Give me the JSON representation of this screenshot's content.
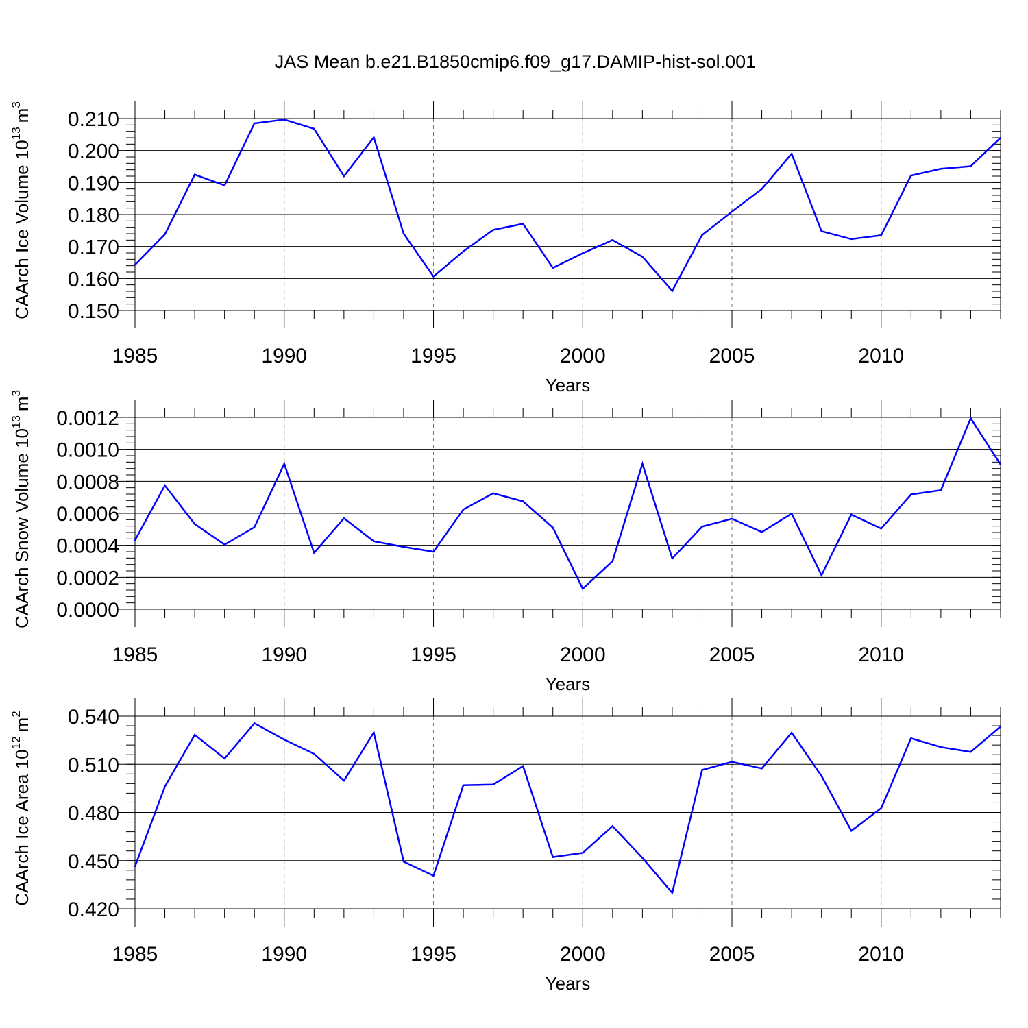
{
  "title": "JAS Mean b.e21.B1850cmip6.f09_g17.DAMIP-hist-sol.001",
  "colors": {
    "series": "#0000ff",
    "axes": "#000000",
    "grid": "#777777"
  },
  "chart_data": [
    {
      "type": "line",
      "ylabel_main": "CAArch Ice Volume 10",
      "ylabel_exp": "13",
      "ylabel_unit": "m",
      "ylabel_unit_exp": "3",
      "xlabel": "Years",
      "xlim": [
        1985,
        2014
      ],
      "ylim": [
        0.15,
        0.21
      ],
      "x_ticks": [
        "1985",
        "1990",
        "1995",
        "2000",
        "2005",
        "2010"
      ],
      "y_ticks": [
        "0.150",
        "0.160",
        "0.170",
        "0.180",
        "0.190",
        "0.200",
        "0.210"
      ],
      "y_tick_values": [
        0.15,
        0.16,
        0.17,
        0.18,
        0.19,
        0.2,
        0.21
      ],
      "y_minor_step": 0.002,
      "x": [
        1985,
        1986,
        1987,
        1988,
        1989,
        1990,
        1991,
        1992,
        1993,
        1994,
        1995,
        1996,
        1997,
        1998,
        1999,
        2000,
        2001,
        2002,
        2003,
        2004,
        2005,
        2006,
        2007,
        2008,
        2009,
        2010,
        2011,
        2012,
        2013,
        2014
      ],
      "series": [
        {
          "name": "Ice Volume",
          "values": [
            0.1643,
            0.1738,
            0.1925,
            0.1891,
            0.2085,
            0.2097,
            0.2068,
            0.192,
            0.2041,
            0.174,
            0.1606,
            0.1685,
            0.1752,
            0.1771,
            0.1633,
            0.1679,
            0.172,
            0.1668,
            0.1561,
            0.1736,
            0.1809,
            0.188,
            0.199,
            0.1748,
            0.1723,
            0.1735,
            0.1922,
            0.1943,
            0.1951,
            0.204
          ]
        }
      ]
    },
    {
      "type": "line",
      "ylabel_main": "CAArch Snow Volume 10",
      "ylabel_exp": "13",
      "ylabel_unit": "m",
      "ylabel_unit_exp": "3",
      "xlabel": "Years",
      "xlim": [
        1985,
        2014
      ],
      "ylim": [
        0.0,
        0.0012
      ],
      "x_ticks": [
        "1985",
        "1990",
        "1995",
        "2000",
        "2005",
        "2010"
      ],
      "y_ticks": [
        "0.0000",
        "0.0002",
        "0.0004",
        "0.0006",
        "0.0008",
        "0.0010",
        "0.0012"
      ],
      "y_tick_values": [
        0.0,
        0.0002,
        0.0004,
        0.0006,
        0.0008,
        0.001,
        0.0012
      ],
      "y_minor_step": 4e-05,
      "x": [
        1985,
        1986,
        1987,
        1988,
        1989,
        1990,
        1991,
        1992,
        1993,
        1994,
        1995,
        1996,
        1997,
        1998,
        1999,
        2000,
        2001,
        2002,
        2003,
        2004,
        2005,
        2006,
        2007,
        2008,
        2009,
        2010,
        2011,
        2012,
        2013,
        2014
      ],
      "series": [
        {
          "name": "Snow Volume",
          "values": [
            0.000432,
            0.000774,
            0.000533,
            0.000404,
            0.000513,
            0.00091,
            0.000353,
            0.000569,
            0.000425,
            0.00039,
            0.00036,
            0.000624,
            0.000725,
            0.000675,
            0.000511,
            0.000128,
            0.000301,
            0.00091,
            0.000317,
            0.000517,
            0.000566,
            0.000483,
            0.000598,
            0.000213,
            0.000592,
            0.000505,
            0.000718,
            0.000745,
            0.001194,
            0.000905
          ]
        }
      ]
    },
    {
      "type": "line",
      "ylabel_main": "CAArch Ice Area 10",
      "ylabel_exp": "12",
      "ylabel_unit": "m",
      "ylabel_unit_exp": "2",
      "xlabel": "Years",
      "xlim": [
        1985,
        2014
      ],
      "ylim": [
        0.42,
        0.54
      ],
      "x_ticks": [
        "1985",
        "1990",
        "1995",
        "2000",
        "2005",
        "2010"
      ],
      "y_ticks": [
        "0.420",
        "0.450",
        "0.480",
        "0.510",
        "0.540"
      ],
      "y_tick_values": [
        0.42,
        0.45,
        0.48,
        0.51,
        0.54
      ],
      "y_minor_step": 0.006,
      "x": [
        1985,
        1986,
        1987,
        1988,
        1989,
        1990,
        1991,
        1992,
        1993,
        1994,
        1995,
        1996,
        1997,
        1998,
        1999,
        2000,
        2001,
        2002,
        2003,
        2004,
        2005,
        2006,
        2007,
        2008,
        2009,
        2010,
        2011,
        2012,
        2013,
        2014
      ],
      "series": [
        {
          "name": "Ice Area",
          "values": [
            0.4464,
            0.4962,
            0.5284,
            0.5136,
            0.5356,
            0.5254,
            0.5165,
            0.4998,
            0.5298,
            0.4494,
            0.4406,
            0.497,
            0.4974,
            0.5089,
            0.4522,
            0.4548,
            0.4715,
            0.4517,
            0.4299,
            0.5065,
            0.5115,
            0.5074,
            0.5297,
            0.5027,
            0.4686,
            0.4827,
            0.5262,
            0.5207,
            0.5177,
            0.5336
          ]
        }
      ]
    }
  ]
}
